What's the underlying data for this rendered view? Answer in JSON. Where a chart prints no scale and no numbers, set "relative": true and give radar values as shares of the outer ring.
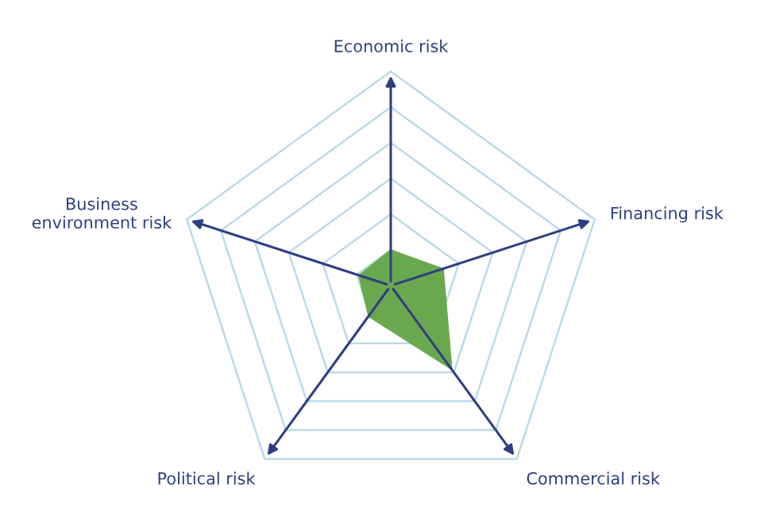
{
  "chart_data": {
    "type": "radar",
    "relative": true,
    "grid": true,
    "categories": [
      "Economic risk",
      "Financing risk",
      "Commercial risk",
      "Political risk",
      "Business\nenvironment risk"
    ],
    "series": [
      {
        "color": "#6aa84f",
        "values": [
          0.17,
          0.26,
          0.49,
          0.18,
          0.16
        ]
      }
    ]
  }
}
